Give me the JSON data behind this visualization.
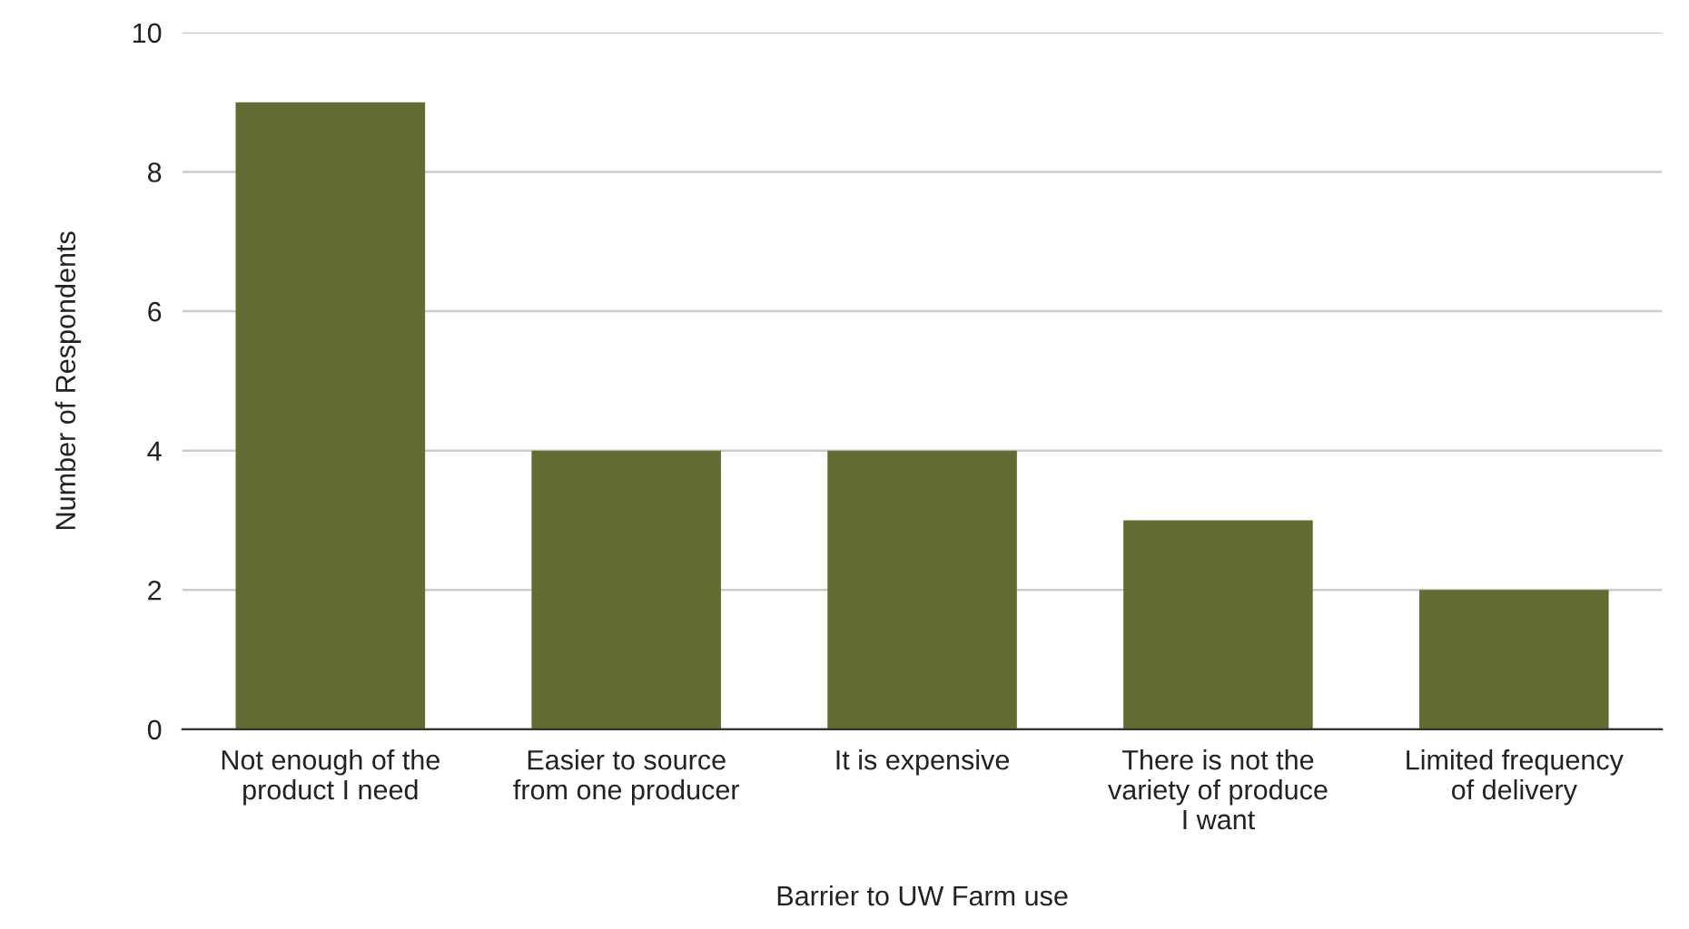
{
  "chart_data": {
    "type": "bar",
    "xlabel": "Barrier to UW Farm use",
    "ylabel": "Number of Respondents",
    "categories": [
      "Not enough of the\nproduct I need",
      "Easier to source\nfrom one producer",
      "It is expensive",
      "There is not the\nvariety of produce\nI want",
      "Limited frequency\nof delivery"
    ],
    "values": [
      9,
      4,
      4,
      3,
      2
    ],
    "color": "#636b32",
    "ylim": [
      0,
      10
    ],
    "yticks": [
      0,
      2,
      4,
      6,
      8,
      10
    ],
    "grid": "y",
    "legend": false
  }
}
